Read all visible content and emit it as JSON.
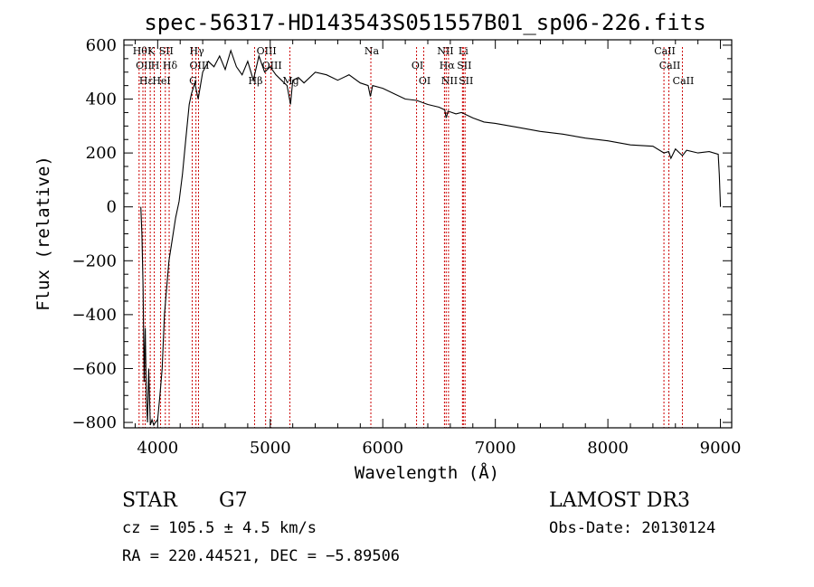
{
  "chart_data": {
    "type": "line",
    "title": "spec-56317-HD143543S051557B01_sp06-226.fits",
    "xlabel": "Wavelength (Å)",
    "ylabel": "Flux (relative)",
    "xlim": [
      3700,
      9100
    ],
    "ylim": [
      -820,
      620
    ],
    "xticks": [
      4000,
      5000,
      6000,
      7000,
      8000,
      9000
    ],
    "yticks": [
      -800,
      -600,
      -400,
      -200,
      0,
      200,
      400,
      600
    ],
    "xtick_labels": [
      "4000",
      "5000",
      "6000",
      "7000",
      "8000",
      "9000"
    ],
    "ytick_labels": [
      "−800",
      "−600",
      "−400",
      "−200",
      "0",
      "200",
      "400",
      "600"
    ],
    "series": [
      {
        "name": "spectrum",
        "x": [
          3850,
          3860,
          3870,
          3880,
          3890,
          3900,
          3910,
          3920,
          3935,
          3950,
          3965,
          3980,
          4000,
          4020,
          4040,
          4060,
          4080,
          4100,
          4130,
          4160,
          4190,
          4220,
          4250,
          4280,
          4300,
          4330,
          4360,
          4400,
          4450,
          4500,
          4550,
          4600,
          4650,
          4700,
          4750,
          4800,
          4850,
          4900,
          4950,
          5000,
          5050,
          5100,
          5150,
          5180,
          5200,
          5250,
          5300,
          5400,
          5500,
          5600,
          5700,
          5800,
          5870,
          5890,
          5910,
          6000,
          6100,
          6200,
          6300,
          6400,
          6500,
          6550,
          6563,
          6580,
          6650,
          6700,
          6800,
          6900,
          7000,
          7200,
          7400,
          7600,
          7800,
          8000,
          8200,
          8400,
          8498,
          8540,
          8560,
          8600,
          8662,
          8700,
          8800,
          8900,
          8980,
          8990,
          9000
        ],
        "y": [
          0,
          -100,
          -300,
          -650,
          -450,
          -720,
          -800,
          -600,
          -810,
          -790,
          -810,
          -800,
          -790,
          -700,
          -600,
          -400,
          -300,
          -200,
          -120,
          -40,
          20,
          120,
          250,
          380,
          420,
          460,
          400,
          500,
          540,
          520,
          560,
          510,
          580,
          520,
          490,
          540,
          470,
          560,
          500,
          520,
          490,
          470,
          450,
          380,
          470,
          480,
          460,
          500,
          490,
          470,
          490,
          460,
          450,
          410,
          450,
          440,
          420,
          400,
          395,
          380,
          370,
          360,
          330,
          355,
          345,
          350,
          330,
          315,
          310,
          295,
          280,
          270,
          255,
          245,
          230,
          225,
          200,
          205,
          180,
          215,
          190,
          210,
          200,
          205,
          195,
          120,
          0
        ]
      }
    ],
    "lines": [
      {
        "x": 3835,
        "label": "Hθ"
      },
      {
        "x": 3869,
        "label": "OII"
      },
      {
        "x": 3889,
        "label": "Hε"
      },
      {
        "x": 3934,
        "label": "K"
      },
      {
        "x": 3970,
        "label": "H"
      },
      {
        "x": 4026,
        "label": "HeI"
      },
      {
        "x": 4068,
        "label": "SII"
      },
      {
        "x": 4102,
        "label": "Hδ"
      },
      {
        "x": 4307,
        "label": "G"
      },
      {
        "x": 4340,
        "label": "Hγ"
      },
      {
        "x": 4363,
        "label": "OIII"
      },
      {
        "x": 4861,
        "label": "Hβ"
      },
      {
        "x": 4959,
        "label": "OIII"
      },
      {
        "x": 5007,
        "label": "OIII"
      },
      {
        "x": 5175,
        "label": "Mg"
      },
      {
        "x": 5894,
        "label": "Na"
      },
      {
        "x": 6300,
        "label": "OI"
      },
      {
        "x": 6364,
        "label": "OI"
      },
      {
        "x": 6548,
        "label": "NII"
      },
      {
        "x": 6563,
        "label": "Hα"
      },
      {
        "x": 6584,
        "label": "NII"
      },
      {
        "x": 6708,
        "label": "Li"
      },
      {
        "x": 6716,
        "label": "SII"
      },
      {
        "x": 6731,
        "label": "SII"
      },
      {
        "x": 8498,
        "label": "CaII"
      },
      {
        "x": 8542,
        "label": "CaII"
      },
      {
        "x": 8662,
        "label": "CaII"
      }
    ]
  },
  "info": {
    "object_class": "STAR",
    "subclass": "G7",
    "survey": "LAMOST DR3",
    "redshift": "cz = 105.5 ± 4.5 km/s",
    "obs_date": "Obs-Date: 20130124",
    "coords": "RA = 220.44521, DEC =  −5.89506"
  },
  "colors": {
    "line": "#000000",
    "marker": "#cc0000",
    "background": "#ffffff"
  }
}
